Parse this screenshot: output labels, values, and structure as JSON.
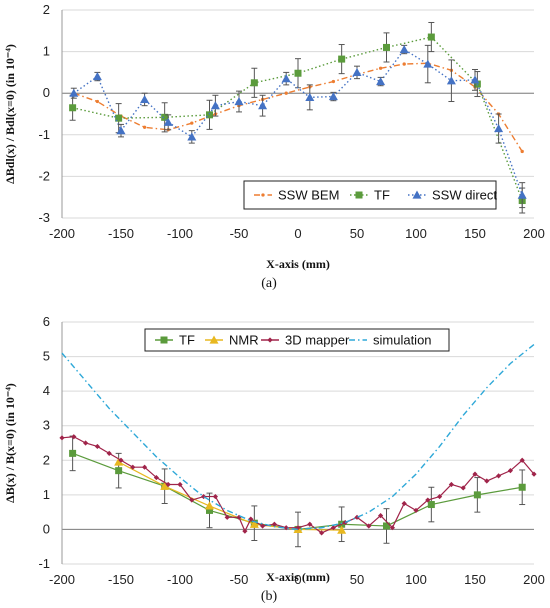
{
  "chart_data": [
    {
      "type": "scatter",
      "caption": "(a)",
      "xlabel": "X-axis (mm)",
      "ylabel": "ΔBdl(x) / Bdl(x=0)  (in 10⁻⁴)",
      "xlim": [
        -200,
        200
      ],
      "ylim": [
        -3,
        2
      ],
      "xticks": [
        -200,
        -150,
        -100,
        -50,
        0,
        50,
        100,
        150,
        200
      ],
      "yticks": [
        -3,
        -2,
        -1,
        0,
        1,
        2
      ],
      "grid": "y",
      "legend": "bottom-right",
      "series": [
        {
          "name": "SSW BEM",
          "color": "#ED7D31",
          "marker": "dot",
          "style": "dash-dot",
          "x": [
            -190,
            -170,
            -150,
            -130,
            -110,
            -90,
            -70,
            -50,
            -30,
            -10,
            10,
            30,
            50,
            70,
            90,
            110,
            130,
            150,
            170,
            190
          ],
          "y": [
            0.0,
            -0.2,
            -0.55,
            -0.82,
            -0.88,
            -0.72,
            -0.5,
            -0.3,
            -0.15,
            0.0,
            0.15,
            0.28,
            0.45,
            0.6,
            0.7,
            0.72,
            0.55,
            0.15,
            -0.5,
            -1.4
          ]
        },
        {
          "name": "TF",
          "color": "#5B9B3C",
          "marker": "square",
          "style": "dot",
          "x": [
            -191,
            -152,
            -113,
            -75,
            -37,
            0,
            37,
            75,
            113,
            152,
            190
          ],
          "y": [
            -0.35,
            -0.6,
            -0.58,
            -0.52,
            0.25,
            0.48,
            0.82,
            1.1,
            1.35,
            0.22,
            -2.58
          ],
          "err": [
            0.3,
            0.35,
            0.35,
            0.35,
            0.35,
            0.35,
            0.35,
            0.35,
            0.35,
            0.3,
            0.3
          ]
        },
        {
          "name": "SSW direct",
          "color": "#4472C4",
          "marker": "triangle",
          "style": "dot",
          "x": [
            -190,
            -170,
            -150,
            -130,
            -110,
            -90,
            -70,
            -50,
            -30,
            -10,
            10,
            30,
            50,
            70,
            90,
            110,
            130,
            150,
            170,
            190
          ],
          "y": [
            0.0,
            0.4,
            -0.9,
            -0.15,
            -0.7,
            -1.05,
            -0.3,
            -0.2,
            -0.3,
            0.35,
            -0.1,
            -0.08,
            0.5,
            0.28,
            1.05,
            0.7,
            0.3,
            0.32,
            -0.85,
            -2.45
          ],
          "err": [
            0.12,
            0.1,
            0.15,
            0.15,
            0.18,
            0.15,
            0.25,
            0.25,
            0.25,
            0.15,
            0.3,
            0.1,
            0.15,
            0.1,
            0.1,
            0.45,
            0.5,
            0.25,
            0.35,
            0.3
          ]
        }
      ]
    },
    {
      "type": "line",
      "caption": "(b)",
      "xlabel": "X-axis (mm)",
      "ylabel": "ΔB(x) / B(x=0)  (in 10⁻⁴)",
      "xlim": [
        -200,
        200
      ],
      "ylim": [
        -1,
        6
      ],
      "xticks": [
        -200,
        -150,
        -100,
        -50,
        0,
        50,
        100,
        150,
        200
      ],
      "yticks": [
        -1,
        0,
        1,
        2,
        3,
        4,
        5,
        6
      ],
      "grid": "y",
      "legend": "top",
      "series": [
        {
          "name": "TF",
          "color": "#5B9B3C",
          "marker": "square",
          "style": "solid",
          "x": [
            -191,
            -152,
            -113,
            -75,
            -37,
            0,
            37,
            75,
            113,
            152,
            190
          ],
          "y": [
            2.2,
            1.7,
            1.25,
            0.55,
            0.18,
            0.0,
            0.15,
            0.1,
            0.72,
            1.0,
            1.22
          ],
          "err": [
            0.5,
            0.5,
            0.5,
            0.5,
            0.5,
            0.5,
            0.5,
            0.5,
            0.5,
            0.5,
            0.5
          ]
        },
        {
          "name": "NMR",
          "color": "#E8B820",
          "marker": "triangle",
          "style": "solid",
          "x": [
            -152,
            -113,
            -75,
            -37,
            0,
            37
          ],
          "y": [
            1.95,
            1.25,
            0.68,
            0.15,
            0.0,
            -0.02
          ]
        },
        {
          "name": "3D mapper",
          "color": "#A0244A",
          "marker": "diamond",
          "style": "solid",
          "x": [
            -200,
            -190,
            -180,
            -170,
            -160,
            -150,
            -140,
            -130,
            -120,
            -110,
            -100,
            -90,
            -80,
            -70,
            -60,
            -50,
            -45,
            -40,
            -30,
            -20,
            -10,
            0,
            10,
            20,
            30,
            40,
            50,
            60,
            70,
            80,
            90,
            100,
            110,
            120,
            130,
            140,
            150,
            160,
            170,
            180,
            190,
            200
          ],
          "y": [
            2.65,
            2.68,
            2.5,
            2.4,
            2.2,
            2.0,
            1.8,
            1.8,
            1.5,
            1.3,
            1.3,
            0.85,
            0.95,
            0.95,
            0.35,
            0.35,
            -0.05,
            0.3,
            0.1,
            0.15,
            0.05,
            0.05,
            0.15,
            -0.1,
            0.05,
            0.2,
            0.35,
            0.1,
            0.4,
            0.05,
            0.75,
            0.55,
            0.85,
            0.95,
            1.3,
            1.2,
            1.6,
            1.4,
            1.55,
            1.7,
            2.0,
            1.6
          ]
        },
        {
          "name": "simulation",
          "color": "#2EA8D8",
          "marker": "none",
          "style": "dash-dot",
          "x": [
            -200,
            -180,
            -160,
            -140,
            -120,
            -100,
            -80,
            -60,
            -40,
            -20,
            0,
            20,
            40,
            60,
            80,
            100,
            120,
            140,
            160,
            180,
            200
          ],
          "y": [
            5.1,
            4.3,
            3.5,
            2.8,
            2.1,
            1.5,
            0.95,
            0.55,
            0.25,
            0.08,
            0.0,
            0.05,
            0.2,
            0.5,
            0.95,
            1.6,
            2.4,
            3.3,
            4.1,
            4.8,
            5.35
          ]
        }
      ]
    }
  ]
}
